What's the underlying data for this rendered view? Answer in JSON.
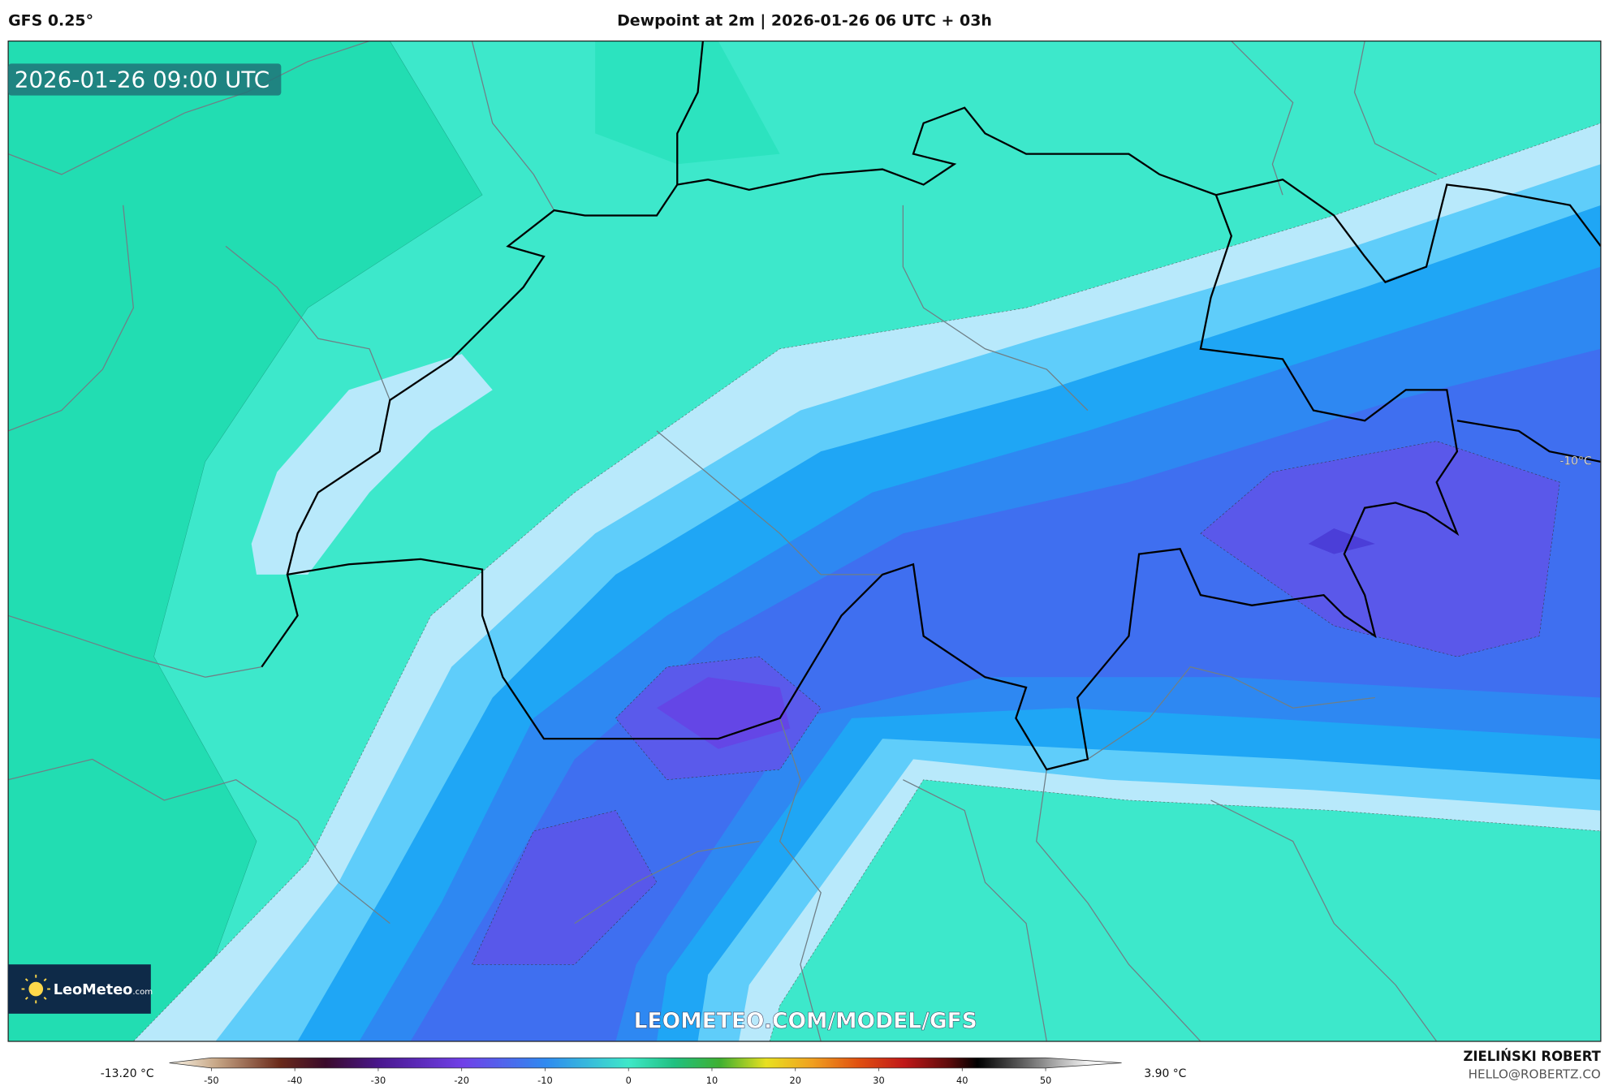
{
  "header": {
    "model": "GFS 0.25°",
    "title": "Dewpoint at 2m | 2026-01-26 06 UTC + 03h"
  },
  "map": {
    "valid_time": "2026-01-26 09:00 UTC",
    "contour_label": "-10°C",
    "watermark": "LEOMETEO.COM/MODEL/GFS",
    "logo": {
      "brand": "LeoMeteo",
      "suffix": ".com"
    }
  },
  "colorbar": {
    "min_label": "-13.20 °C",
    "max_label": "3.90 °C",
    "ticks": [
      -50,
      -40,
      -30,
      -20,
      -10,
      0,
      10,
      20,
      30,
      40,
      50
    ]
  },
  "footer": {
    "author": "ZIELIŃSKI ROBERT",
    "contact": "HELLO@ROBERTZ.CO"
  }
}
